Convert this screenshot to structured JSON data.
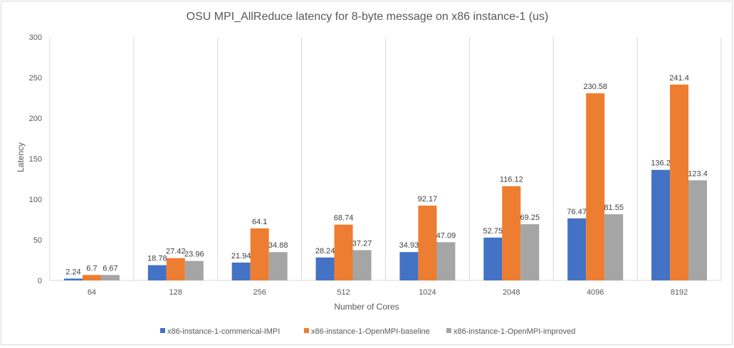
{
  "chart_data": {
    "type": "bar",
    "title": "OSU MPI_AllReduce latency for 8-byte message on x86 instance-1 (us)",
    "xlabel": "Number of Cores",
    "ylabel": "Latency",
    "ylim": [
      0,
      300
    ],
    "yticks": [
      "0",
      "50",
      "100",
      "150",
      "200",
      "250",
      "300"
    ],
    "categories": [
      "64",
      "128",
      "256",
      "512",
      "1024",
      "2048",
      "4096",
      "8192"
    ],
    "grid": "vertical category separators",
    "legend": "bottom",
    "series": [
      {
        "name": "x86-instance-1-commerical-IMPI",
        "color": "#4472c4",
        "values": [
          2.24,
          18.78,
          21.94,
          28.24,
          34.93,
          52.75,
          76.47,
          136.2
        ]
      },
      {
        "name": "x86-instance-1-OpenMPI-baseline",
        "color": "#ed7d31",
        "values": [
          6.7,
          27.42,
          64.1,
          68.74,
          92.17,
          116.12,
          230.58,
          241.4
        ]
      },
      {
        "name": "x86-instance-1-OpenMPI-improved",
        "color": "#a5a5a5",
        "values": [
          6.67,
          23.96,
          34.88,
          37.27,
          47.09,
          69.25,
          81.55,
          123.4
        ]
      }
    ]
  }
}
